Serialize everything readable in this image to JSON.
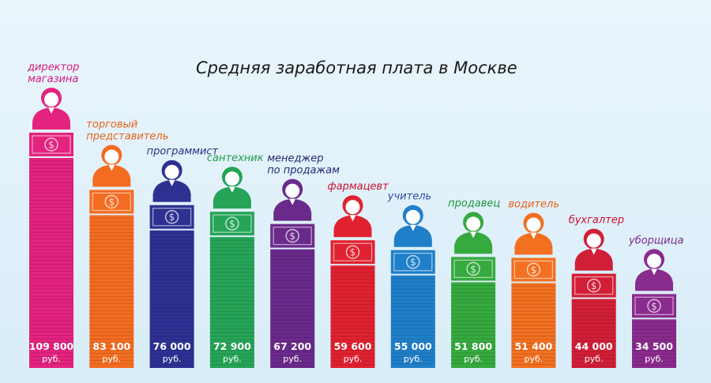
{
  "title": "Средняя заработная плата в Москве",
  "chart_data": {
    "type": "bar",
    "title": "Средняя заработная плата в Москве",
    "unit": "руб.",
    "ylim": [
      0,
      109800
    ],
    "categories": [
      "директор магазина",
      "торговый представитель",
      "программист",
      "сантехник",
      "менеджер по продажам",
      "фармацевт",
      "учитель",
      "продавец",
      "водитель",
      "бухгалтер",
      "уборщица"
    ],
    "category_lines": [
      [
        "директор",
        "магазина"
      ],
      [
        "торговый",
        "представитель"
      ],
      [
        "программист"
      ],
      [
        "сантехник"
      ],
      [
        "менеджер",
        "по продажам"
      ],
      [
        "фармацевт"
      ],
      [
        "учитель"
      ],
      [
        "продавец"
      ],
      [
        "водитель"
      ],
      [
        "бухгалтер"
      ],
      [
        "уборщица"
      ]
    ],
    "values": [
      109800,
      83100,
      76000,
      72900,
      67200,
      59600,
      55000,
      51800,
      51400,
      44000,
      34500
    ],
    "value_labels": [
      "109 800",
      "83 100",
      "76 000",
      "72 900",
      "67 200",
      "59 600",
      "55 000",
      "51 800",
      "51 400",
      "44 000",
      "34 500"
    ],
    "label_colors": [
      "#d8177e",
      "#e8621a",
      "#2c2e7e",
      "#1f9a4d",
      "#262770",
      "#c8102e",
      "#2a4ea8",
      "#1e9640",
      "#e8621a",
      "#c8102e",
      "#7b2888"
    ],
    "bar_colors": [
      "#e4237f",
      "#f36c21",
      "#2e3192",
      "#26a457",
      "#6a2a8c",
      "#e02230",
      "#1f7fc8",
      "#36a93f",
      "#f37021",
      "#d11f37",
      "#8a2b8e"
    ],
    "icons": [
      "manager-icon",
      "sales-rep-icon",
      "programmer-icon",
      "plumber-icon",
      "sales-manager-icon",
      "pharmacist-icon",
      "teacher-icon",
      "shop-assistant-icon",
      "driver-icon",
      "accountant-icon",
      "cleaner-icon"
    ]
  }
}
